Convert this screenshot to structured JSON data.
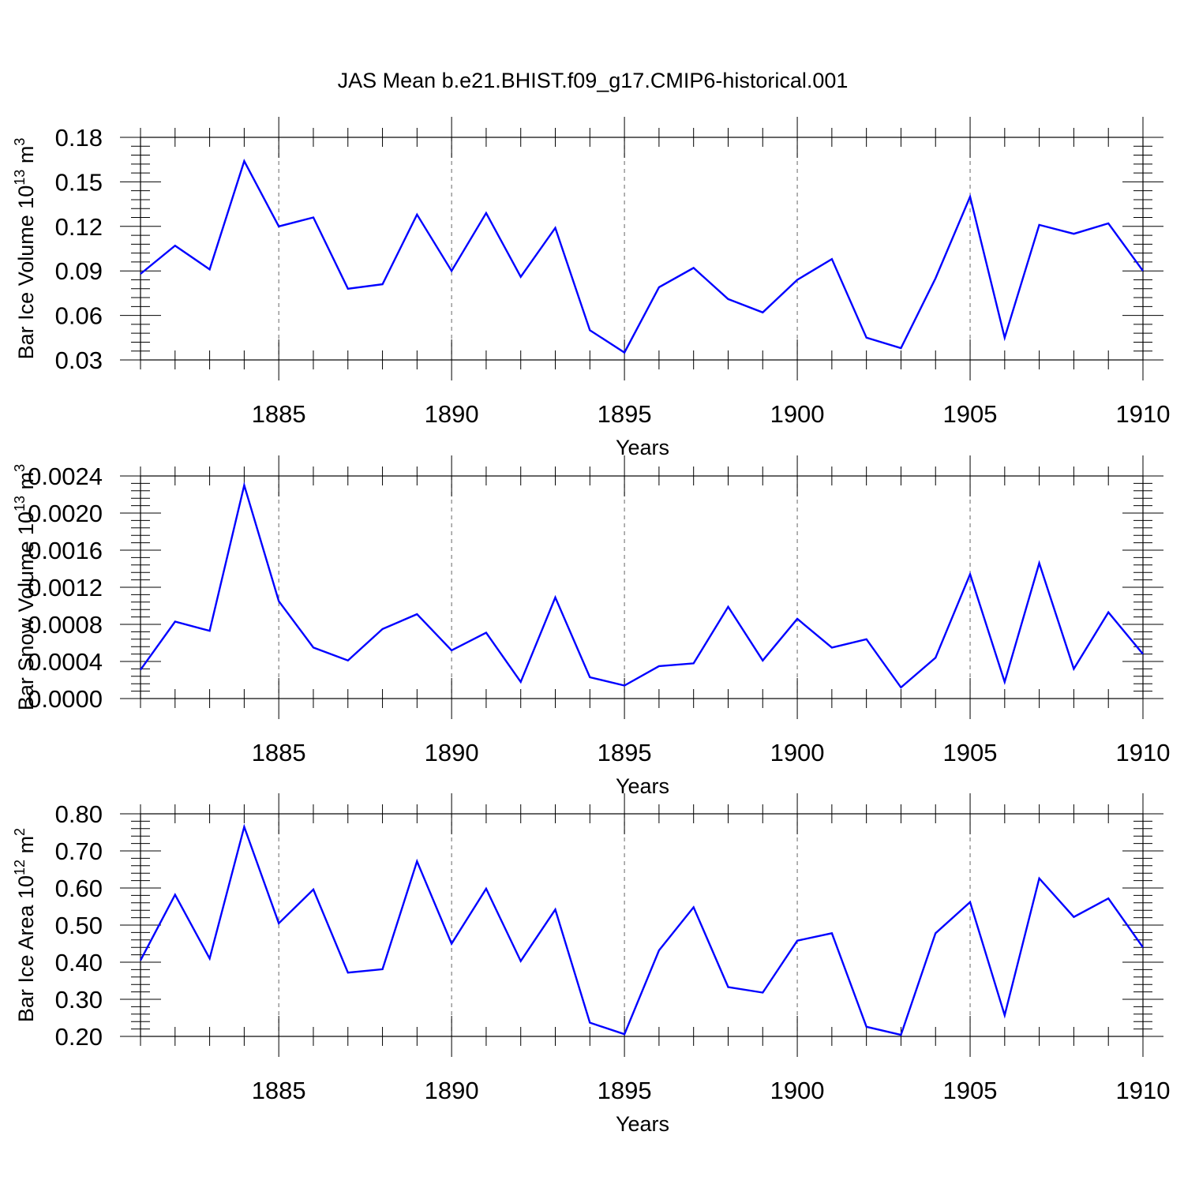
{
  "title": "JAS Mean b.e21.BHIST.f09_g17.CMIP6-historical.001",
  "colors": {
    "line": "#0000ff",
    "axis": "#000000",
    "grid": "#666666"
  },
  "chart_data": [
    {
      "type": "line",
      "title": "JAS Mean b.e21.BHIST.f09_g17.CMIP6-historical.001",
      "ylabel_base": "Bar Ice Volume 10",
      "ylabel_exp": "13",
      "ylabel_unit": " m",
      "ylabel_unit_exp": "3",
      "xlabel": "Years",
      "xlim": [
        1881,
        1910
      ],
      "ylim": [
        0.03,
        0.18
      ],
      "yticks": [
        0.03,
        0.06,
        0.09,
        0.12,
        0.15,
        0.18
      ],
      "ytick_labels": [
        "0.03",
        "0.06",
        "0.09",
        "0.12",
        "0.15",
        "0.18"
      ],
      "yminor_step": 0.006,
      "xticks": [
        1885,
        1890,
        1895,
        1900,
        1905,
        1910
      ],
      "xtick_labels": [
        "1885",
        "1890",
        "1895",
        "1900",
        "1905",
        "1910"
      ],
      "grid": "vertical dashed at major x ticks",
      "series": [
        {
          "name": "Bar Ice Volume",
          "x": [
            1881,
            1882,
            1883,
            1884,
            1885,
            1886,
            1887,
            1888,
            1889,
            1890,
            1891,
            1892,
            1893,
            1894,
            1895,
            1896,
            1897,
            1898,
            1899,
            1900,
            1901,
            1902,
            1903,
            1904,
            1905,
            1906,
            1907,
            1908,
            1909,
            1910
          ],
          "values": [
            0.088,
            0.107,
            0.091,
            0.164,
            0.12,
            0.126,
            0.078,
            0.081,
            0.128,
            0.09,
            0.129,
            0.086,
            0.119,
            0.05,
            0.035,
            0.079,
            0.092,
            0.071,
            0.062,
            0.084,
            0.098,
            0.045,
            0.038,
            0.085,
            0.14,
            0.045,
            0.121,
            0.115,
            0.122,
            0.09
          ]
        }
      ]
    },
    {
      "type": "line",
      "ylabel_base": "Bar Snow Volume 10",
      "ylabel_exp": "13",
      "ylabel_unit": " m",
      "ylabel_unit_exp": "3",
      "xlabel": "Years",
      "xlim": [
        1881,
        1910
      ],
      "ylim": [
        0.0,
        0.0024
      ],
      "yticks": [
        0.0,
        0.0004,
        0.0008,
        0.0012,
        0.0016,
        0.002,
        0.0024
      ],
      "ytick_labels": [
        "0.0000",
        "0.0004",
        "0.0008",
        "0.0012",
        "0.0016",
        "0.0020",
        "0.0024"
      ],
      "yminor_step": 8e-05,
      "xticks": [
        1885,
        1890,
        1895,
        1900,
        1905,
        1910
      ],
      "xtick_labels": [
        "1885",
        "1890",
        "1895",
        "1900",
        "1905",
        "1910"
      ],
      "grid": "vertical dashed at major x ticks",
      "series": [
        {
          "name": "Bar Snow Volume",
          "x": [
            1881,
            1882,
            1883,
            1884,
            1885,
            1886,
            1887,
            1888,
            1889,
            1890,
            1891,
            1892,
            1893,
            1894,
            1895,
            1896,
            1897,
            1898,
            1899,
            1900,
            1901,
            1902,
            1903,
            1904,
            1905,
            1906,
            1907,
            1908,
            1909,
            1910
          ],
          "values": [
            0.00031,
            0.00083,
            0.00073,
            0.0023,
            0.00105,
            0.00055,
            0.00041,
            0.00075,
            0.00091,
            0.00052,
            0.00071,
            0.00018,
            0.00109,
            0.00023,
            0.00014,
            0.00035,
            0.00038,
            0.00099,
            0.00041,
            0.00086,
            0.00055,
            0.00064,
            0.00012,
            0.00044,
            0.00134,
            0.00018,
            0.00146,
            0.00032,
            0.00093,
            0.00048
          ]
        }
      ]
    },
    {
      "type": "line",
      "ylabel_base": "Bar Ice Area 10",
      "ylabel_exp": "12",
      "ylabel_unit": " m",
      "ylabel_unit_exp": "2",
      "xlabel": "Years",
      "xlim": [
        1881,
        1910
      ],
      "ylim": [
        0.2,
        0.8
      ],
      "yticks": [
        0.2,
        0.3,
        0.4,
        0.5,
        0.6,
        0.7,
        0.8
      ],
      "ytick_labels": [
        "0.20",
        "0.30",
        "0.40",
        "0.50",
        "0.60",
        "0.70",
        "0.80"
      ],
      "yminor_step": 0.02,
      "xticks": [
        1885,
        1890,
        1895,
        1900,
        1905,
        1910
      ],
      "xtick_labels": [
        "1885",
        "1890",
        "1895",
        "1900",
        "1905",
        "1910"
      ],
      "grid": "vertical dashed at major x ticks",
      "series": [
        {
          "name": "Bar Ice Area",
          "x": [
            1881,
            1882,
            1883,
            1884,
            1885,
            1886,
            1887,
            1888,
            1889,
            1890,
            1891,
            1892,
            1893,
            1894,
            1895,
            1896,
            1897,
            1898,
            1899,
            1900,
            1901,
            1902,
            1903,
            1904,
            1905,
            1906,
            1907,
            1908,
            1909,
            1910
          ],
          "values": [
            0.405,
            0.582,
            0.41,
            0.765,
            0.505,
            0.596,
            0.372,
            0.381,
            0.672,
            0.45,
            0.598,
            0.403,
            0.542,
            0.237,
            0.206,
            0.432,
            0.548,
            0.333,
            0.318,
            0.458,
            0.478,
            0.226,
            0.204,
            0.478,
            0.562,
            0.257,
            0.626,
            0.522,
            0.572,
            0.44
          ]
        }
      ]
    }
  ]
}
